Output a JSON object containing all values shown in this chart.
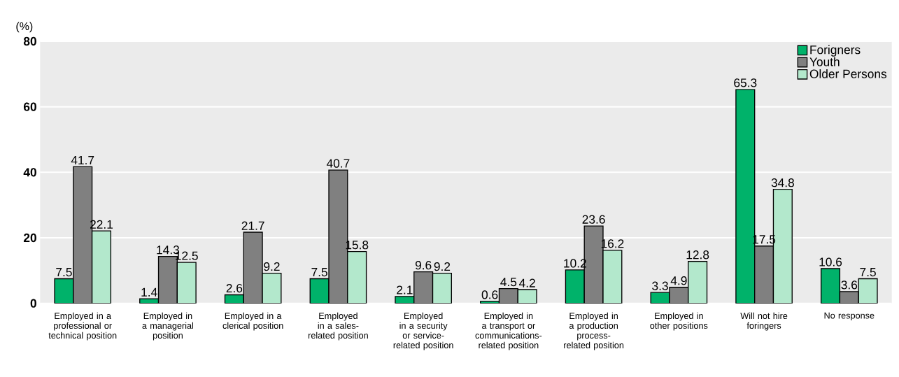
{
  "chart_data": {
    "type": "bar",
    "ylabel": "(%)",
    "categories": [
      "Employed in a professional or technical position",
      "Employed in a managerial position",
      "Employed in a clerical position",
      "Employed in a sales-related position",
      "Employed in a security or service-related position",
      "Employed in a transport or communications-related position",
      "Employed in a production process-related position",
      "Employed in other positions",
      "Will not hire foringers",
      "No response"
    ],
    "series": [
      {
        "name": "Forigners",
        "color": "#00b26a",
        "values": [
          7.5,
          1.4,
          2.6,
          7.5,
          2.1,
          0.6,
          10.2,
          3.3,
          65.3,
          10.6
        ]
      },
      {
        "name": "Youth",
        "color": "#808080",
        "values": [
          41.7,
          14.3,
          21.7,
          40.7,
          9.6,
          4.5,
          23.6,
          4.9,
          17.5,
          3.6
        ]
      },
      {
        "name": "Older Persons",
        "color": "#b3e8cc",
        "values": [
          22.1,
          12.5,
          9.2,
          15.8,
          9.2,
          4.2,
          16.2,
          12.8,
          34.8,
          7.5
        ]
      }
    ],
    "ylim": [
      0,
      80
    ],
    "yticks": [
      0,
      20,
      40,
      60,
      80
    ],
    "grid": "y",
    "legend": "top right",
    "data_labels": true
  }
}
